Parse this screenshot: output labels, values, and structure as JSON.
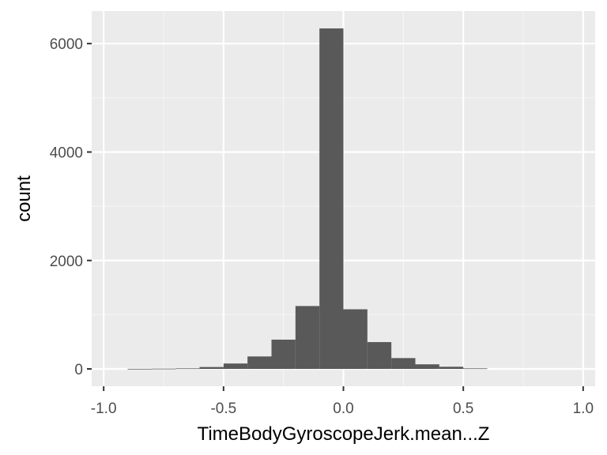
{
  "chart_data": {
    "type": "bar",
    "subtype": "histogram",
    "title": "",
    "xlabel": "TimeBodyGyroscopeJerk.mean...Z",
    "ylabel": "count",
    "xlim": [
      -1.05,
      1.05
    ],
    "ylim": [
      -320,
      6600
    ],
    "x_ticks": [
      -1.0,
      -0.5,
      0.0,
      0.5,
      1.0
    ],
    "x_tick_labels": [
      "-1.0",
      "-0.5",
      "0.0",
      "0.5",
      "1.0"
    ],
    "y_ticks": [
      0,
      2000,
      4000,
      6000
    ],
    "y_tick_labels": [
      "0",
      "2000",
      "4000",
      "6000"
    ],
    "grid": true,
    "bin_width": 0.1,
    "bins": [
      {
        "x0": -0.9,
        "x1": -0.8,
        "count": 2
      },
      {
        "x0": -0.8,
        "x1": -0.7,
        "count": 5
      },
      {
        "x0": -0.7,
        "x1": -0.6,
        "count": 10
      },
      {
        "x0": -0.6,
        "x1": -0.5,
        "count": 35
      },
      {
        "x0": -0.5,
        "x1": -0.4,
        "count": 100
      },
      {
        "x0": -0.4,
        "x1": -0.3,
        "count": 230
      },
      {
        "x0": -0.3,
        "x1": -0.2,
        "count": 540
      },
      {
        "x0": -0.2,
        "x1": -0.1,
        "count": 1160
      },
      {
        "x0": -0.1,
        "x1": 0.0,
        "count": 6280
      },
      {
        "x0": 0.0,
        "x1": 0.1,
        "count": 1100
      },
      {
        "x0": 0.1,
        "x1": 0.2,
        "count": 495
      },
      {
        "x0": 0.2,
        "x1": 0.3,
        "count": 200
      },
      {
        "x0": 0.3,
        "x1": 0.4,
        "count": 85
      },
      {
        "x0": 0.4,
        "x1": 0.5,
        "count": 40
      },
      {
        "x0": 0.5,
        "x1": 0.6,
        "count": 10
      }
    ],
    "colors": {
      "bar": "#595959",
      "panel": "#ebebeb",
      "grid_major": "#ffffff",
      "grid_minor": "#f5f5f5",
      "axis_tick": "#333333"
    }
  }
}
